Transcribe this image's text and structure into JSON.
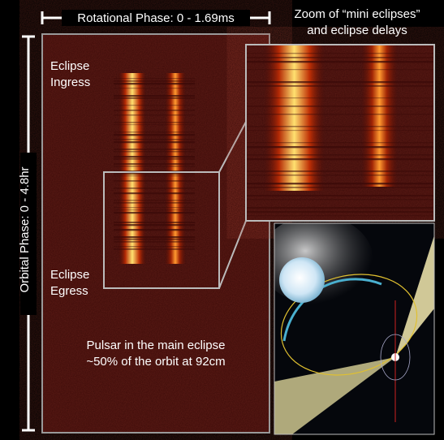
{
  "header": {
    "rotational_phase": "Rotational Phase: 0 - 1.69ms",
    "orbital_phase": "Orbital Phase: 0 - 4.8hr"
  },
  "zoom_caption": [
    "Zoom of “mini eclipses”",
    "and eclipse delays"
  ],
  "ingress": [
    "Eclipse",
    "Ingress"
  ],
  "egress": [
    "Eclipse",
    "Egress"
  ],
  "caption": [
    "Pulsar in the main eclipse",
    "~50% of the orbit at 92cm"
  ]
}
